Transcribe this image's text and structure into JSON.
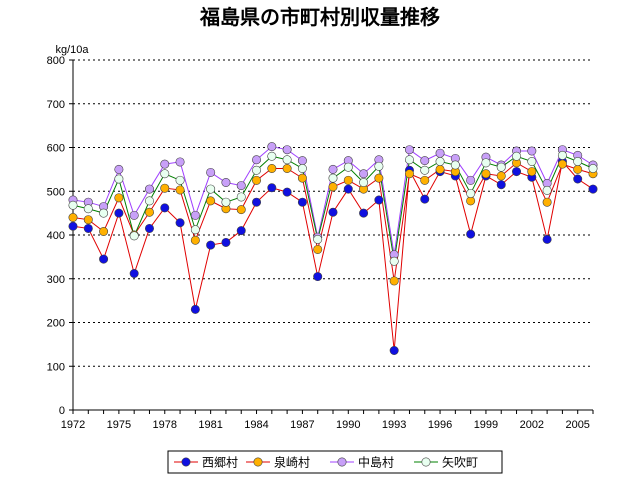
{
  "chart_data": {
    "type": "line",
    "title": "福島県の市町村別収量推移",
    "ylabel": "kg/10a",
    "xlabel": "",
    "ylim": [
      0,
      800
    ],
    "yticks": [
      0,
      100,
      200,
      300,
      400,
      500,
      600,
      700,
      800
    ],
    "xlim": [
      1972,
      2006
    ],
    "xtick_labels": [
      "1972",
      "1975",
      "1978",
      "1981",
      "1984",
      "1987",
      "1990",
      "1993",
      "1996",
      "1999",
      "2002",
      "2005"
    ],
    "grid": "horizontal dotted",
    "legend_position": "bottom",
    "x": [
      1972,
      1973,
      1974,
      1975,
      1976,
      1977,
      1978,
      1979,
      1980,
      1981,
      1982,
      1983,
      1984,
      1985,
      1986,
      1987,
      1988,
      1989,
      1990,
      1991,
      1992,
      1993,
      1994,
      1995,
      1996,
      1997,
      1998,
      1999,
      2000,
      2001,
      2002,
      2003,
      2004,
      2005,
      2006
    ],
    "series": [
      {
        "name": "西郷村",
        "line_color": "#e00000",
        "marker_color": "#1010e0",
        "values": [
          420,
          415,
          345,
          450,
          312,
          415,
          462,
          428,
          230,
          377,
          383,
          410,
          475,
          508,
          498,
          475,
          305,
          452,
          505,
          450,
          480,
          136,
          548,
          482,
          545,
          535,
          402,
          535,
          515,
          545,
          532,
          390,
          568,
          528,
          505
        ]
      },
      {
        "name": "泉崎村",
        "line_color": "#e00000",
        "marker_color": "#ffb000",
        "values": [
          440,
          435,
          408,
          485,
          400,
          452,
          507,
          503,
          388,
          478,
          460,
          458,
          525,
          552,
          552,
          530,
          367,
          510,
          525,
          505,
          530,
          295,
          540,
          525,
          550,
          545,
          478,
          540,
          535,
          565,
          545,
          475,
          562,
          550,
          540
        ]
      },
      {
        "name": "中島村",
        "line_color": "#a040ff",
        "marker_color": "#c8a0f8",
        "values": [
          480,
          475,
          465,
          550,
          445,
          505,
          562,
          567,
          445,
          543,
          520,
          513,
          572,
          602,
          595,
          570,
          395,
          550,
          570,
          540,
          572,
          355,
          595,
          570,
          587,
          575,
          525,
          578,
          560,
          592,
          592,
          518,
          595,
          582,
          560
        ]
      },
      {
        "name": "矢吹町",
        "line_color": "#008000",
        "marker_color": "#e8fff0",
        "values": [
          468,
          460,
          450,
          528,
          398,
          478,
          540,
          525,
          412,
          505,
          475,
          487,
          548,
          580,
          572,
          552,
          390,
          530,
          555,
          520,
          557,
          340,
          572,
          548,
          568,
          560,
          495,
          565,
          555,
          580,
          568,
          502,
          582,
          568,
          552
        ]
      }
    ]
  }
}
